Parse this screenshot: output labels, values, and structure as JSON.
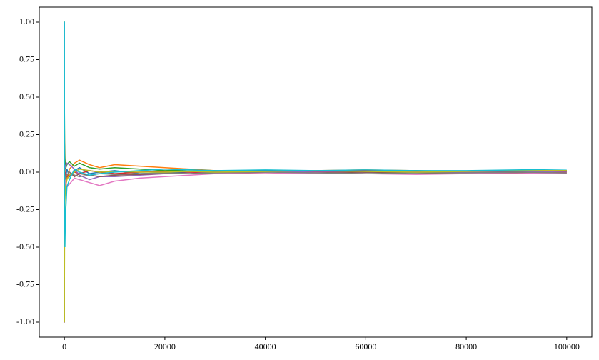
{
  "chart_data": {
    "type": "line",
    "x": [
      1,
      2,
      5,
      10,
      50,
      100,
      200,
      500,
      1000,
      2000,
      3000,
      5000,
      7000,
      10000,
      15000,
      20000,
      25000,
      30000,
      40000,
      50000,
      60000,
      70000,
      80000,
      90000,
      100000
    ],
    "series": [
      {
        "color": "#1f77b4",
        "values": [
          1,
          0,
          -0.2,
          0.2,
          0.1,
          -0.12,
          -0.05,
          0.02,
          -0.03,
          0.01,
          0.03,
          -0.01,
          0.0,
          0.01,
          -0.01,
          -0.005,
          0.0,
          0.005,
          0.01,
          0.005,
          0.0,
          0.002,
          0.0,
          0.003,
          0.005
        ]
      },
      {
        "color": "#ff7f0e",
        "values": [
          -1,
          0,
          0.2,
          -0.4,
          -0.2,
          0.08,
          -0.1,
          -0.05,
          0.02,
          0.06,
          0.08,
          0.05,
          0.03,
          0.05,
          0.04,
          0.03,
          0.02,
          0.01,
          0.005,
          0.01,
          0.015,
          0.01,
          0.005,
          0.01,
          0.01
        ]
      },
      {
        "color": "#2ca02c",
        "values": [
          1,
          1,
          0.6,
          0.4,
          0.2,
          0.1,
          0.02,
          0.05,
          0.07,
          0.04,
          0.06,
          0.03,
          0.02,
          0.03,
          0.02,
          0.01,
          0.015,
          0.01,
          0.005,
          0.0,
          0.005,
          0.01,
          0.0,
          0.005,
          0.01
        ]
      },
      {
        "color": "#d62728",
        "values": [
          -1,
          0,
          0.2,
          0.3,
          -0.1,
          -0.05,
          0.0,
          -0.03,
          -0.02,
          0.0,
          -0.01,
          0.01,
          0.0,
          -0.01,
          0.0,
          0.005,
          0.0,
          -0.005,
          0.0,
          0.005,
          0.01,
          0.005,
          0.0,
          0.0,
          0.0
        ]
      },
      {
        "color": "#9467bd",
        "values": [
          1,
          0,
          -0.2,
          -0.2,
          0.0,
          0.05,
          0.03,
          0.06,
          0.05,
          0.02,
          -0.02,
          -0.05,
          -0.03,
          -0.03,
          -0.02,
          -0.01,
          -0.01,
          0.0,
          0.005,
          0.0,
          0.0,
          0.005,
          0.0,
          0.0,
          0.005
        ]
      },
      {
        "color": "#8c564b",
        "values": [
          -1,
          -1,
          -0.6,
          -0.2,
          -0.15,
          -0.1,
          -0.06,
          -0.02,
          0.0,
          -0.03,
          -0.01,
          -0.02,
          -0.03,
          -0.02,
          -0.015,
          -0.01,
          -0.01,
          -0.005,
          -0.01,
          -0.005,
          0.0,
          -0.005,
          -0.01,
          -0.005,
          -0.01
        ]
      },
      {
        "color": "#e377c2",
        "values": [
          1,
          0,
          0.2,
          0.0,
          -0.1,
          -0.08,
          -0.05,
          -0.1,
          -0.08,
          -0.04,
          -0.05,
          -0.07,
          -0.09,
          -0.06,
          -0.04,
          -0.03,
          -0.02,
          -0.01,
          -0.01,
          -0.005,
          -0.01,
          -0.015,
          -0.01,
          -0.01,
          -0.005
        ]
      },
      {
        "color": "#7f7f7f",
        "values": [
          -1,
          -0.5,
          -0.2,
          0.0,
          -0.05,
          -0.02,
          -0.04,
          -0.02,
          0.0,
          -0.02,
          -0.03,
          -0.02,
          -0.01,
          -0.015,
          -0.01,
          -0.005,
          -0.01,
          -0.005,
          0.0,
          -0.005,
          -0.01,
          -0.005,
          -0.005,
          0.0,
          -0.005
        ]
      },
      {
        "color": "#bcbd22",
        "values": [
          -1,
          -0.5,
          -0.6,
          -0.7,
          -0.3,
          -0.2,
          -0.1,
          -0.05,
          -0.02,
          0.0,
          0.02,
          0.01,
          0.0,
          0.005,
          0.0,
          0.0,
          0.005,
          0.0,
          0.005,
          0.01,
          0.005,
          0.0,
          0.005,
          0.01,
          0.01
        ]
      },
      {
        "color": "#17becf",
        "values": [
          1,
          1,
          0.6,
          0.2,
          -0.2,
          -0.5,
          -0.3,
          -0.1,
          -0.05,
          0.02,
          0.0,
          -0.02,
          -0.01,
          0.0,
          0.01,
          0.02,
          0.015,
          0.01,
          0.015,
          0.01,
          0.015,
          0.01,
          0.01,
          0.015,
          0.02
        ]
      }
    ],
    "xlim": [
      -5000,
      105000
    ],
    "xticks": [
      0,
      20000,
      40000,
      60000,
      80000,
      100000
    ],
    "ylim": [
      -1.1,
      1.1
    ],
    "yticks": [
      {
        "value": -1,
        "label": "-1.00"
      },
      {
        "value": -0.75,
        "label": "-0.75"
      },
      {
        "value": -0.5,
        "label": "-0.50"
      },
      {
        "value": -0.25,
        "label": "-0.25"
      },
      {
        "value": 0,
        "label": "0.00"
      },
      {
        "value": 0.25,
        "label": "0.25"
      },
      {
        "value": 0.5,
        "label": "0.50"
      },
      {
        "value": 0.75,
        "label": "0.75"
      },
      {
        "value": 1,
        "label": "1.00"
      }
    ]
  }
}
